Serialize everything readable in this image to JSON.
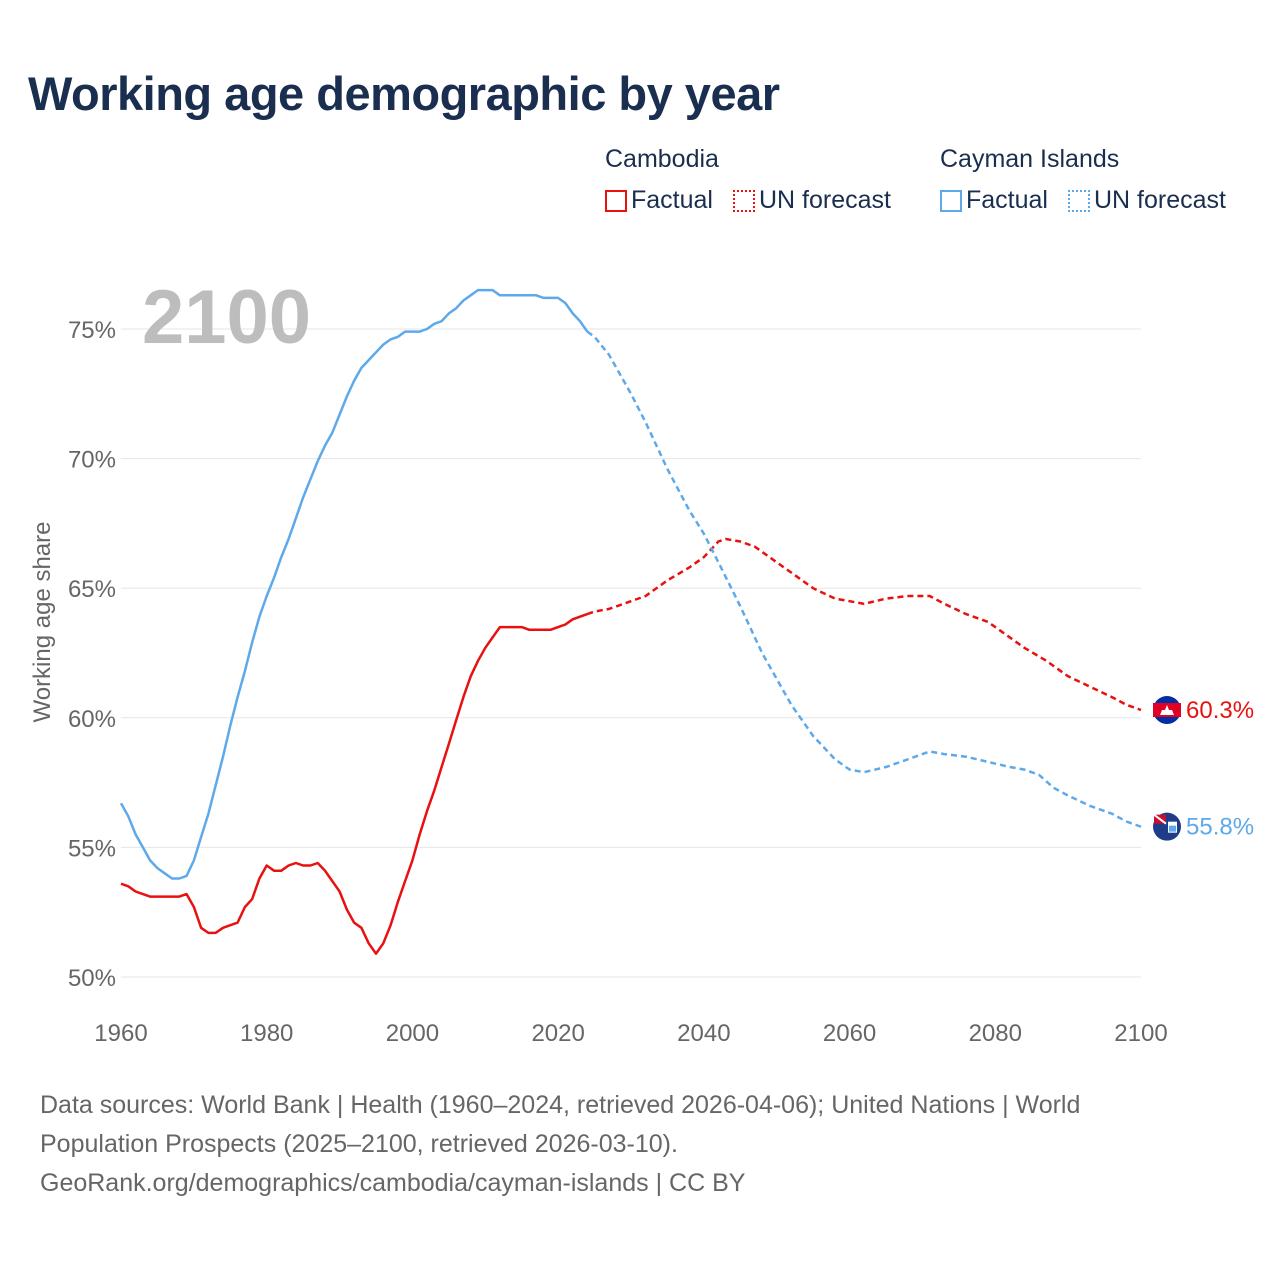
{
  "title": "Working age demographic by year",
  "year_watermark": "2100",
  "legend": {
    "groups": [
      {
        "name": "Cambodia",
        "color": "#e8110f",
        "factual": "Factual",
        "forecast": "UN forecast"
      },
      {
        "name": "Cayman Islands",
        "color": "#5da9e9",
        "factual": "Factual",
        "forecast": "UN forecast"
      }
    ]
  },
  "source_lines": [
    "Data sources: World Bank | Health (1960–2024, retrieved 2026-04-06); United Nations | World",
    "Population Prospects (2025–2100, retrieved 2026-03-10).",
    "GeoRank.org/demographics/cambodia/cayman-islands | CC BY"
  ],
  "chart_data": {
    "type": "line",
    "title": "Working age demographic by year",
    "ylabel": "Working age share",
    "xlabel": "",
    "xlim": [
      1960,
      2100
    ],
    "ylim": [
      50,
      77
    ],
    "x_ticks": [
      1960,
      1980,
      2000,
      2020,
      2040,
      2060,
      2080,
      2100
    ],
    "y_ticks": [
      50,
      55,
      60,
      65,
      70,
      75
    ],
    "y_tick_labels": [
      "50%",
      "55%",
      "60%",
      "65%",
      "70%",
      "75%"
    ],
    "forecast_start": 2024,
    "series": [
      {
        "name": "Cambodia",
        "color": "#e8110f",
        "end_label": "60.3%",
        "points": [
          [
            1960,
            53.6
          ],
          [
            1961,
            53.5
          ],
          [
            1962,
            53.3
          ],
          [
            1963,
            53.2
          ],
          [
            1964,
            53.1
          ],
          [
            1965,
            53.1
          ],
          [
            1966,
            53.1
          ],
          [
            1967,
            53.1
          ],
          [
            1968,
            53.1
          ],
          [
            1969,
            53.2
          ],
          [
            1970,
            52.7
          ],
          [
            1971,
            51.9
          ],
          [
            1972,
            51.7
          ],
          [
            1973,
            51.7
          ],
          [
            1974,
            51.9
          ],
          [
            1975,
            52.0
          ],
          [
            1976,
            52.1
          ],
          [
            1977,
            52.7
          ],
          [
            1978,
            53.0
          ],
          [
            1979,
            53.8
          ],
          [
            1980,
            54.3
          ],
          [
            1981,
            54.1
          ],
          [
            1982,
            54.1
          ],
          [
            1983,
            54.3
          ],
          [
            1984,
            54.4
          ],
          [
            1985,
            54.3
          ],
          [
            1986,
            54.3
          ],
          [
            1987,
            54.4
          ],
          [
            1988,
            54.1
          ],
          [
            1989,
            53.7
          ],
          [
            1990,
            53.3
          ],
          [
            1991,
            52.6
          ],
          [
            1992,
            52.1
          ],
          [
            1993,
            51.9
          ],
          [
            1994,
            51.3
          ],
          [
            1995,
            50.9
          ],
          [
            1996,
            51.3
          ],
          [
            1997,
            52.0
          ],
          [
            1998,
            52.9
          ],
          [
            1999,
            53.7
          ],
          [
            2000,
            54.5
          ],
          [
            2001,
            55.5
          ],
          [
            2002,
            56.4
          ],
          [
            2003,
            57.2
          ],
          [
            2004,
            58.1
          ],
          [
            2005,
            59.0
          ],
          [
            2006,
            59.9
          ],
          [
            2007,
            60.8
          ],
          [
            2008,
            61.6
          ],
          [
            2009,
            62.2
          ],
          [
            2010,
            62.7
          ],
          [
            2011,
            63.1
          ],
          [
            2012,
            63.5
          ],
          [
            2013,
            63.5
          ],
          [
            2014,
            63.5
          ],
          [
            2015,
            63.5
          ],
          [
            2016,
            63.4
          ],
          [
            2017,
            63.4
          ],
          [
            2018,
            63.4
          ],
          [
            2019,
            63.4
          ],
          [
            2020,
            63.5
          ],
          [
            2021,
            63.6
          ],
          [
            2022,
            63.8
          ],
          [
            2023,
            63.9
          ],
          [
            2024,
            64.0
          ],
          [
            2025,
            64.1
          ],
          [
            2027,
            64.2
          ],
          [
            2030,
            64.5
          ],
          [
            2032,
            64.7
          ],
          [
            2035,
            65.3
          ],
          [
            2038,
            65.8
          ],
          [
            2040,
            66.2
          ],
          [
            2042,
            66.8
          ],
          [
            2043,
            66.9
          ],
          [
            2045,
            66.8
          ],
          [
            2047,
            66.6
          ],
          [
            2050,
            66.0
          ],
          [
            2052,
            65.6
          ],
          [
            2055,
            65.0
          ],
          [
            2058,
            64.6
          ],
          [
            2060,
            64.5
          ],
          [
            2062,
            64.4
          ],
          [
            2065,
            64.6
          ],
          [
            2068,
            64.7
          ],
          [
            2071,
            64.7
          ],
          [
            2073,
            64.4
          ],
          [
            2076,
            64.0
          ],
          [
            2079,
            63.7
          ],
          [
            2081,
            63.3
          ],
          [
            2084,
            62.7
          ],
          [
            2087,
            62.2
          ],
          [
            2090,
            61.6
          ],
          [
            2093,
            61.2
          ],
          [
            2096,
            60.8
          ],
          [
            2098,
            60.5
          ],
          [
            2100,
            60.3
          ]
        ]
      },
      {
        "name": "Cayman Islands",
        "color": "#5da9e9",
        "end_label": "55.8%",
        "points": [
          [
            1960,
            56.7
          ],
          [
            1961,
            56.2
          ],
          [
            1962,
            55.5
          ],
          [
            1963,
            55.0
          ],
          [
            1964,
            54.5
          ],
          [
            1965,
            54.2
          ],
          [
            1966,
            54.0
          ],
          [
            1967,
            53.8
          ],
          [
            1968,
            53.8
          ],
          [
            1969,
            53.9
          ],
          [
            1970,
            54.5
          ],
          [
            1971,
            55.4
          ],
          [
            1972,
            56.3
          ],
          [
            1973,
            57.4
          ],
          [
            1974,
            58.5
          ],
          [
            1975,
            59.7
          ],
          [
            1976,
            60.8
          ],
          [
            1977,
            61.8
          ],
          [
            1978,
            62.9
          ],
          [
            1979,
            63.9
          ],
          [
            1980,
            64.7
          ],
          [
            1981,
            65.4
          ],
          [
            1982,
            66.2
          ],
          [
            1983,
            66.9
          ],
          [
            1984,
            67.7
          ],
          [
            1985,
            68.5
          ],
          [
            1986,
            69.2
          ],
          [
            1987,
            69.9
          ],
          [
            1988,
            70.5
          ],
          [
            1989,
            71.0
          ],
          [
            1990,
            71.7
          ],
          [
            1991,
            72.4
          ],
          [
            1992,
            73.0
          ],
          [
            1993,
            73.5
          ],
          [
            1994,
            73.8
          ],
          [
            1995,
            74.1
          ],
          [
            1996,
            74.4
          ],
          [
            1997,
            74.6
          ],
          [
            1998,
            74.7
          ],
          [
            1999,
            74.9
          ],
          [
            2000,
            74.9
          ],
          [
            2001,
            74.9
          ],
          [
            2002,
            75.0
          ],
          [
            2003,
            75.2
          ],
          [
            2004,
            75.3
          ],
          [
            2005,
            75.6
          ],
          [
            2006,
            75.8
          ],
          [
            2007,
            76.1
          ],
          [
            2008,
            76.3
          ],
          [
            2009,
            76.5
          ],
          [
            2010,
            76.5
          ],
          [
            2011,
            76.5
          ],
          [
            2012,
            76.3
          ],
          [
            2013,
            76.3
          ],
          [
            2014,
            76.3
          ],
          [
            2015,
            76.3
          ],
          [
            2016,
            76.3
          ],
          [
            2017,
            76.3
          ],
          [
            2018,
            76.2
          ],
          [
            2019,
            76.2
          ],
          [
            2020,
            76.2
          ],
          [
            2021,
            76.0
          ],
          [
            2022,
            75.6
          ],
          [
            2023,
            75.3
          ],
          [
            2024,
            74.9
          ],
          [
            2025,
            74.7
          ],
          [
            2027,
            74.0
          ],
          [
            2030,
            72.5
          ],
          [
            2032,
            71.4
          ],
          [
            2035,
            69.6
          ],
          [
            2038,
            68.0
          ],
          [
            2040,
            67.1
          ],
          [
            2042,
            66.0
          ],
          [
            2045,
            64.3
          ],
          [
            2048,
            62.5
          ],
          [
            2050,
            61.5
          ],
          [
            2052,
            60.5
          ],
          [
            2055,
            59.3
          ],
          [
            2058,
            58.4
          ],
          [
            2060,
            58.0
          ],
          [
            2062,
            57.9
          ],
          [
            2065,
            58.1
          ],
          [
            2068,
            58.4
          ],
          [
            2070,
            58.6
          ],
          [
            2071,
            58.7
          ],
          [
            2073,
            58.6
          ],
          [
            2076,
            58.5
          ],
          [
            2079,
            58.3
          ],
          [
            2082,
            58.1
          ],
          [
            2084,
            58.0
          ],
          [
            2086,
            57.8
          ],
          [
            2088,
            57.3
          ],
          [
            2090,
            57.0
          ],
          [
            2093,
            56.6
          ],
          [
            2096,
            56.3
          ],
          [
            2098,
            56.0
          ],
          [
            2100,
            55.8
          ]
        ]
      }
    ]
  }
}
